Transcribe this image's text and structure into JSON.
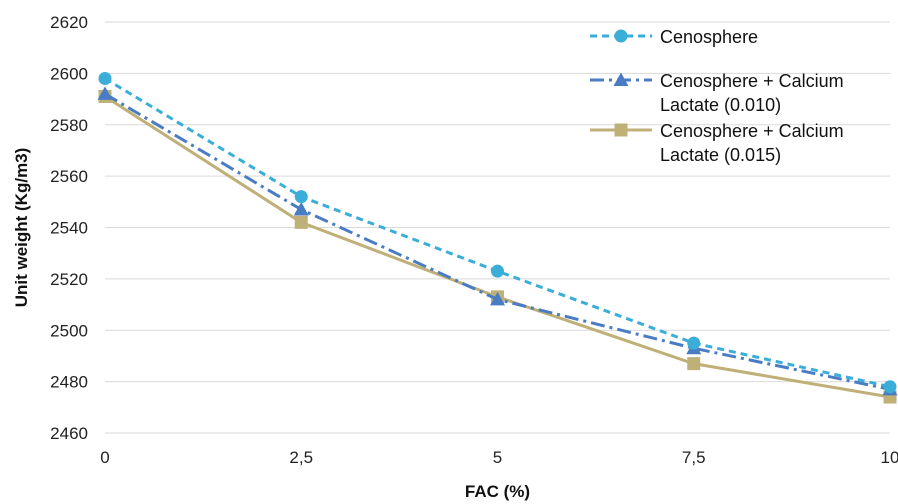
{
  "chart_data": {
    "type": "line",
    "xlabel": "FAC (%)",
    "ylabel": "Unit weight (Kg/m3)",
    "x": [
      0,
      2.5,
      5,
      7.5,
      10
    ],
    "x_tick_labels": [
      "0",
      "2,5",
      "5",
      "7,5",
      "10"
    ],
    "y_tick_labels": [
      "2460",
      "2480",
      "2500",
      "2520",
      "2540",
      "2560",
      "2580",
      "2600",
      "2620"
    ],
    "ylim": [
      2460,
      2620
    ],
    "xlim": [
      0,
      10
    ],
    "grid": "horizontal",
    "legend_position": "top-right",
    "series": [
      {
        "name": "Cenosphere",
        "legend_lines": [
          "Cenosphere"
        ],
        "values": [
          2598,
          2552,
          2523,
          2495,
          2478
        ],
        "color": "#3aaed8",
        "line_style": "dashed",
        "marker": "circle"
      },
      {
        "name": "Cenosphere + Calcium Lactate (0.010)",
        "legend_lines": [
          "Cenosphere + Calcium",
          "Lactate (0.010)"
        ],
        "values": [
          2592,
          2547,
          2512,
          2493,
          2477
        ],
        "color": "#4a7cc4",
        "line_style": "dash-dot",
        "marker": "triangle"
      },
      {
        "name": "Cenosphere  + Calcium Lactate (0.015)",
        "legend_lines": [
          "Cenosphere  + Calcium",
          "Lactate (0.015)"
        ],
        "values": [
          2591,
          2542,
          2513,
          2487,
          2474
        ],
        "color": "#bfb078",
        "line_style": "solid",
        "marker": "square"
      }
    ]
  }
}
